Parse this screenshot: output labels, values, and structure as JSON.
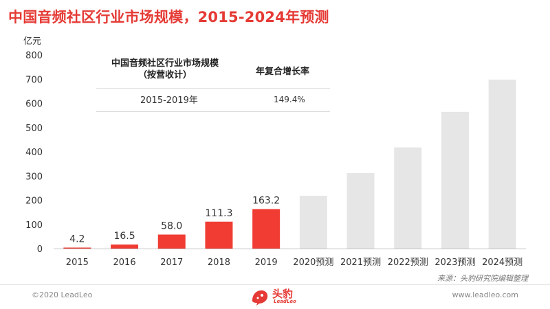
{
  "title": "中国音频社区行业市场规模，2015-2024年预测",
  "inset_table": {
    "header_left": "中国音频社区行业市场规模\n（按营收计）",
    "header_right": "年复合增长率",
    "period": "2015-2019年",
    "cagr": "149.4%"
  },
  "source": "来源：头豹研究院编辑整理",
  "footer": {
    "copyright": "©2020 LeadLeo",
    "site": "www.leadleo.com",
    "logo_text": "头豹",
    "logo_sub": "LeadLeo"
  },
  "colors": {
    "title": "#e53a35",
    "actual_bar": "#f03c33",
    "forecast_bar": "#e6e6e6",
    "axis": "#bfbfbf"
  },
  "chart_data": {
    "type": "bar",
    "ylabel": "亿元",
    "ylim": [
      0,
      800
    ],
    "yticks": [
      0,
      100,
      200,
      300,
      400,
      500,
      600,
      700,
      800
    ],
    "grid": false,
    "categories": [
      "2015",
      "2016",
      "2017",
      "2018",
      "2019",
      "2020预测",
      "2021预测",
      "2022预测",
      "2023预测",
      "2024预测"
    ],
    "values": [
      4.2,
      16.5,
      58.0,
      111.3,
      163.2,
      218,
      312,
      418,
      565,
      698
    ],
    "data_labels": [
      "4.2",
      "16.5",
      "58.0",
      "111.3",
      "163.2",
      "",
      "",
      "",
      "",
      ""
    ],
    "forecast": [
      false,
      false,
      false,
      false,
      false,
      true,
      true,
      true,
      true,
      true
    ]
  }
}
